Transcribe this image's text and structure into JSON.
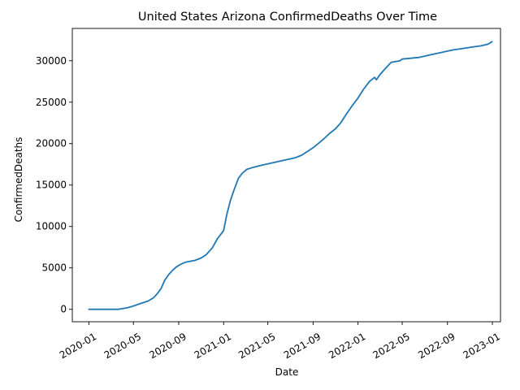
{
  "chart_data": {
    "type": "line",
    "title": "United States Arizona ConfirmedDeaths Over Time",
    "xlabel": "Date",
    "ylabel": "ConfirmedDeaths",
    "xlim": [
      "2019-11-17",
      "2023-01-23"
    ],
    "ylim": [
      -1500,
      33900
    ],
    "x_ticks": [
      "2020-01",
      "2020-05",
      "2020-09",
      "2021-01",
      "2021-05",
      "2021-09",
      "2022-01",
      "2022-05",
      "2022-09",
      "2023-01"
    ],
    "y_ticks": [
      0,
      5000,
      10000,
      15000,
      20000,
      25000,
      30000
    ],
    "y_tick_labels": [
      "0",
      "5000",
      "10000",
      "15000",
      "20000",
      "25000",
      "30000"
    ],
    "grid": false,
    "legend": "none",
    "line_color": "#1f77b4",
    "series": [
      {
        "x": [
          "2020-01-01",
          "2020-03-20",
          "2020-04-15",
          "2020-05-01",
          "2020-05-20",
          "2020-06-10",
          "2020-06-25",
          "2020-07-05",
          "2020-07-15",
          "2020-07-25",
          "2020-08-05",
          "2020-08-15",
          "2020-08-25",
          "2020-09-05",
          "2020-09-20",
          "2020-10-15",
          "2020-11-01",
          "2020-11-15",
          "2020-12-01",
          "2020-12-15",
          "2021-01-01",
          "2021-01-10",
          "2021-01-20",
          "2021-01-30",
          "2021-02-10",
          "2021-02-20",
          "2021-03-05",
          "2021-03-20",
          "2021-04-15",
          "2021-05-15",
          "2021-06-15",
          "2021-07-15",
          "2021-08-01",
          "2021-08-15",
          "2021-09-01",
          "2021-09-15",
          "2021-10-01",
          "2021-10-15",
          "2021-11-01",
          "2021-11-15",
          "2021-12-01",
          "2021-12-15",
          "2022-01-01",
          "2022-01-15",
          "2022-02-01",
          "2022-02-15",
          "2022-02-20",
          "2022-03-01",
          "2022-03-15",
          "2022-04-01",
          "2022-04-25",
          "2022-05-01",
          "2022-06-15",
          "2022-07-15",
          "2022-08-15",
          "2022-09-15",
          "2022-10-15",
          "2022-11-15",
          "2022-12-01",
          "2022-12-20",
          "2022-12-31"
        ],
        "y": [
          0,
          0,
          200,
          400,
          700,
          1000,
          1400,
          1900,
          2500,
          3500,
          4200,
          4700,
          5100,
          5400,
          5700,
          5900,
          6200,
          6600,
          7400,
          8500,
          9500,
          11500,
          13200,
          14500,
          15800,
          16400,
          16900,
          17100,
          17400,
          17700,
          18000,
          18300,
          18600,
          19000,
          19500,
          20000,
          20600,
          21200,
          21800,
          22500,
          23600,
          24500,
          25500,
          26500,
          27500,
          28000,
          27700,
          28300,
          29000,
          29800,
          30000,
          30200,
          30400,
          30700,
          31000,
          31300,
          31500,
          31700,
          31800,
          32000,
          32300
        ]
      }
    ]
  }
}
